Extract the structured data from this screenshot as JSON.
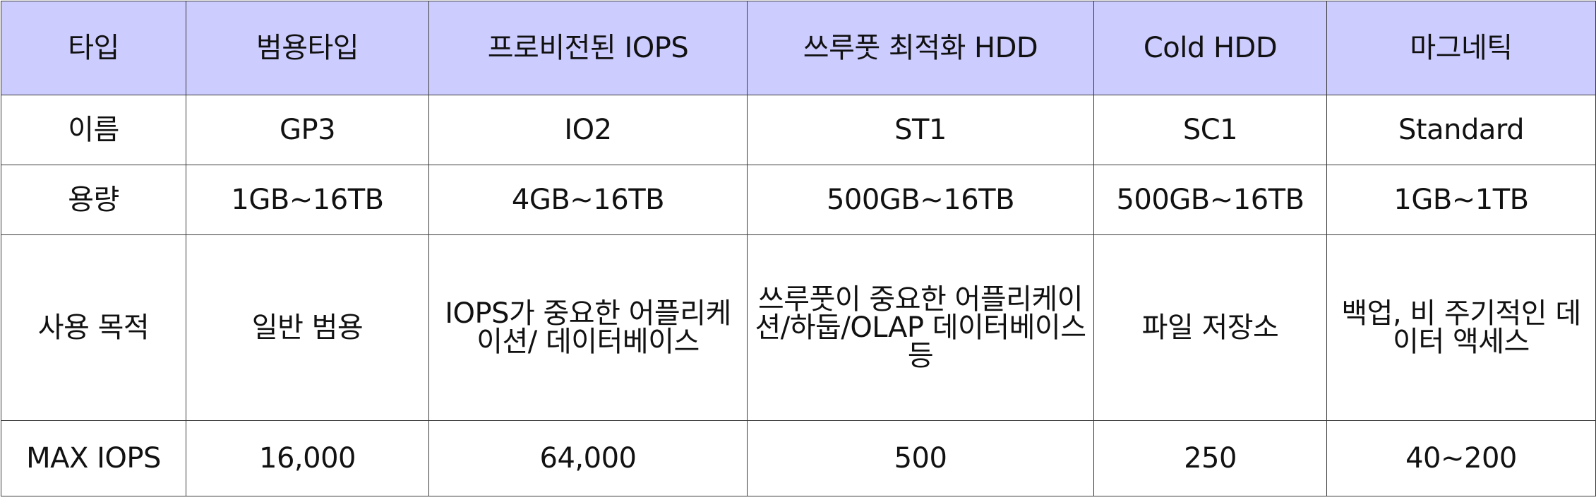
{
  "table": {
    "headers": [
      "타입",
      "범용타입",
      "프로비전된 IOPS",
      "쓰루풋 최적화 HDD",
      "Cold HDD",
      "마그네틱"
    ],
    "rows": [
      {
        "label": "이름",
        "values": [
          "GP3",
          "IO2",
          "ST1",
          "SC1",
          "Standard"
        ]
      },
      {
        "label": "용량",
        "values": [
          "1GB~16TB",
          "4GB~16TB",
          "500GB~16TB",
          "500GB~16TB",
          "1GB~1TB"
        ]
      },
      {
        "label": "사용 목적",
        "values": [
          "일반 범용",
          "IOPS가 중요한 어플리케이션/ 데이터베이스",
          "쓰루풋이 중요한 어플리케이션/하둡/OLAP 데이터베이스 등",
          "파일 저장소",
          "백업, 비 주기적인 데이터 액세스"
        ]
      },
      {
        "label": "MAX IOPS",
        "values": [
          "16,000",
          "64,000",
          "500",
          "250",
          "40~200"
        ]
      }
    ]
  },
  "colors": {
    "header_bg": "#ccccff",
    "border": "#3a3a3a",
    "text": "#111111"
  }
}
